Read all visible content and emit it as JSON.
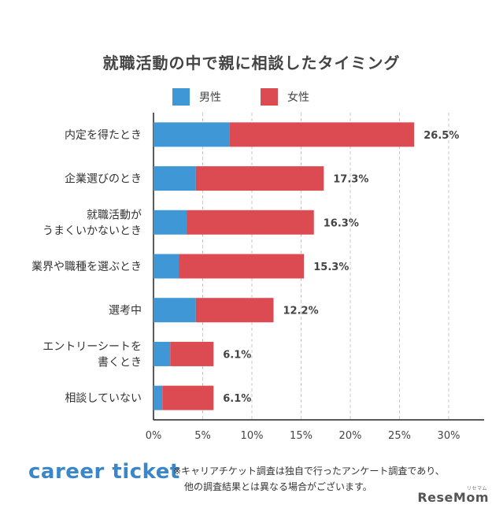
{
  "chart_data": {
    "type": "bar",
    "orientation": "horizontal",
    "stacked": true,
    "title": "就職活動の中で親に相談したタイミング",
    "categories": [
      [
        "内定を得たとき"
      ],
      [
        "企業選びのとき"
      ],
      [
        "就職活動が",
        "うまくいかないとき"
      ],
      [
        "業界や職種を選ぶとき"
      ],
      [
        "選考中"
      ],
      [
        "エントリーシートを",
        "書くとき"
      ],
      [
        "相談していない"
      ]
    ],
    "series": [
      {
        "name": "男性",
        "color": "#3f97d6",
        "values": [
          7.7,
          4.3,
          3.4,
          2.6,
          4.3,
          1.7,
          0.9
        ]
      },
      {
        "name": "女性",
        "color": "#dd4b52",
        "values": [
          18.8,
          13.0,
          12.9,
          12.7,
          7.9,
          4.4,
          5.2
        ]
      }
    ],
    "totals": [
      "26.5%",
      "17.3%",
      "16.3%",
      "15.3%",
      "12.2%",
      "6.1%",
      "6.1%"
    ],
    "xlim": [
      0,
      30
    ],
    "xticks": [
      "0%",
      "5%",
      "10%",
      "15%",
      "20%",
      "25%",
      "30%"
    ],
    "grid": true,
    "legend": "top-center"
  },
  "footer": {
    "logo": "career ticket",
    "note_line1": "※キャリアチケット調査は独自で行ったアンケート調査であり、",
    "note_line2": "他の調査結果とは異なる場合がございます。",
    "brand": "ReseMom",
    "brand_small": "リセマム"
  }
}
